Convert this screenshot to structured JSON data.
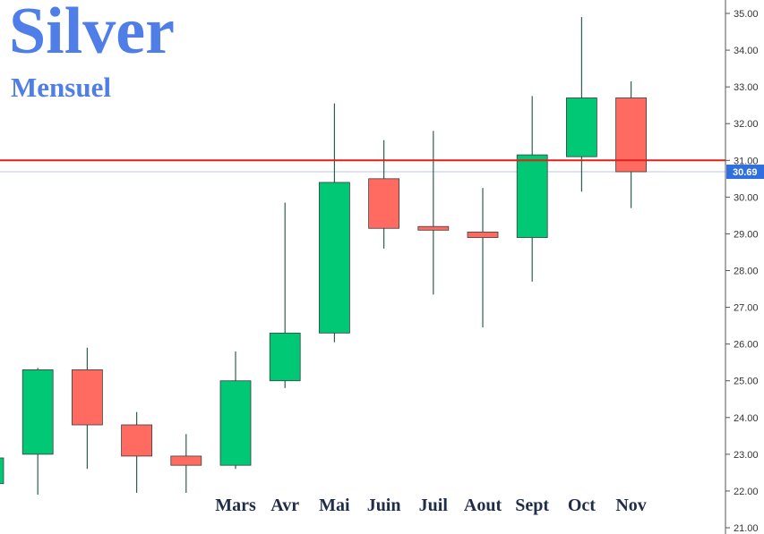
{
  "title": "Silver",
  "subtitle": "Mensuel",
  "colors": {
    "up": "#00c875",
    "down": "#ff6b60",
    "wick": "#2f5f4f",
    "level_line": "#e0201e",
    "price_line": "#b8c7e6",
    "price_tag": "#2f6fe0",
    "title": "#4f7ee8"
  },
  "chart_data": {
    "type": "candlestick",
    "title": "Silver",
    "subtitle": "Mensuel",
    "ylim": [
      21.0,
      35.0
    ],
    "y_ticks": [
      "21.00",
      "22.00",
      "23.00",
      "24.00",
      "25.00",
      "26.00",
      "27.00",
      "28.00",
      "29.00",
      "30.00",
      "31.00",
      "32.00",
      "33.00",
      "34.00",
      "35.00"
    ],
    "month_labels": [
      "",
      "",
      "",
      "",
      "",
      "Mars",
      "Avr",
      "Mai",
      "Juin",
      "Juil",
      "Aout",
      "Sept",
      "Oct",
      "Nov"
    ],
    "candles": [
      {
        "open": 22.2,
        "high": 22.9,
        "low": 22.1,
        "close": 22.9
      },
      {
        "open": 23.0,
        "high": 25.35,
        "low": 21.9,
        "close": 25.3
      },
      {
        "open": 25.3,
        "high": 25.9,
        "low": 22.6,
        "close": 23.8
      },
      {
        "open": 23.8,
        "high": 24.15,
        "low": 21.95,
        "close": 22.95
      },
      {
        "open": 22.95,
        "high": 23.55,
        "low": 21.95,
        "close": 22.7
      },
      {
        "open": 22.7,
        "high": 25.8,
        "low": 22.6,
        "close": 25.0
      },
      {
        "open": 25.0,
        "high": 29.85,
        "low": 24.8,
        "close": 26.3
      },
      {
        "open": 26.3,
        "high": 32.55,
        "low": 26.05,
        "close": 30.4
      },
      {
        "open": 30.5,
        "high": 31.55,
        "low": 28.6,
        "close": 29.15
      },
      {
        "open": 29.2,
        "high": 31.8,
        "low": 27.35,
        "close": 29.1
      },
      {
        "open": 29.05,
        "high": 30.25,
        "low": 26.45,
        "close": 28.9
      },
      {
        "open": 28.9,
        "high": 32.75,
        "low": 27.7,
        "close": 31.15
      },
      {
        "open": 31.1,
        "high": 34.9,
        "low": 30.15,
        "close": 32.7
      },
      {
        "open": 32.7,
        "high": 33.15,
        "low": 29.7,
        "close": 30.69
      }
    ],
    "horizontal_level": 31.0,
    "last_price": 30.69,
    "last_price_label": "30.69",
    "grid": false
  }
}
